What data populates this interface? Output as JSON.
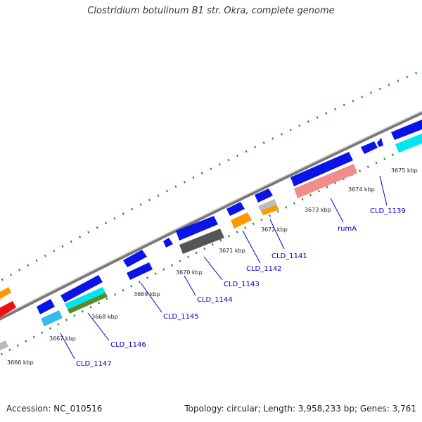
{
  "title": "Clostridium botulinum B1 str. Okra, complete genome",
  "footer": {
    "accession": "Accession: NC_010516",
    "summary": "Topology: circular; Length: 3,958,233 bp; Genes: 3,761"
  },
  "ruler": [
    "3666 kbp",
    "3667 kbp",
    "3668 kbp",
    "3669 kbp",
    "3670 kbp",
    "3671 kbp",
    "3672 kbp",
    "3673 kbp",
    "3674 kbp",
    "3675 kbp"
  ],
  "genes": [
    "CLD_1147",
    "CLD_1146",
    "CLD_1145",
    "CLD_1144",
    "CLD_1143",
    "CLD_1142",
    "CLD_1141",
    "rumA",
    "CLD_1139"
  ],
  "colors": {
    "backbone": "#8c8c8c",
    "tick": "#2e8b2e",
    "gene_blue": "#0a14e6",
    "label": "#0000cc",
    "cyan": "#00e5ee",
    "light_blue": "#33bbee",
    "orange": "#ff9900",
    "salmon": "#f08c8c",
    "dark_gray": "#555555",
    "olive": "#5a8a2a",
    "red": "#ee1111",
    "light_gray": "#bbbbbb"
  }
}
